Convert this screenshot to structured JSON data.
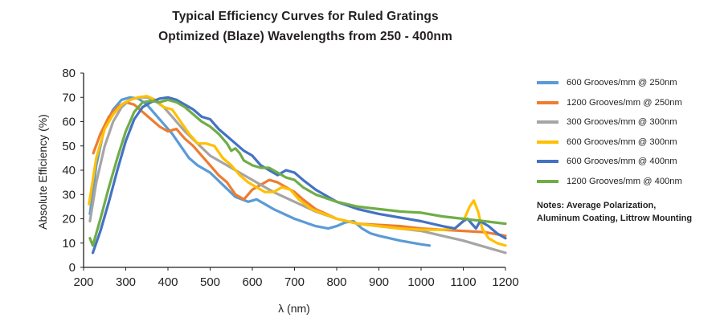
{
  "chart_data": {
    "type": "line",
    "title": "Typical Efficiency Curves for Ruled Gratings",
    "subtitle": "Optimized (Blaze) Wavelengths from 250 - 400nm",
    "xlabel": "λ (nm)",
    "ylabel": "Absolute Efficiency (%)",
    "xlim": [
      200,
      1200
    ],
    "ylim": [
      0,
      80
    ],
    "xticks": [
      "200",
      "300",
      "400",
      "500",
      "600",
      "700",
      "800",
      "900",
      "1000",
      "1100",
      "1200"
    ],
    "yticks": [
      "0",
      "10",
      "20",
      "30",
      "40",
      "50",
      "60",
      "70",
      "80"
    ],
    "grid": false,
    "legend_position": "right",
    "series": [
      {
        "name": "600 Grooves/mm @ 250nm",
        "color": "#5b9bd5",
        "x": [
          215,
          230,
          250,
          270,
          290,
          310,
          330,
          350,
          370,
          390,
          410,
          430,
          450,
          470,
          500,
          530,
          560,
          590,
          610,
          630,
          650,
          700,
          750,
          780,
          800,
          820,
          840,
          860,
          880,
          900,
          950,
          1000,
          1020
        ],
        "y": [
          22,
          42,
          58,
          65,
          69,
          70,
          69.5,
          67,
          63,
          59,
          55,
          50,
          45,
          42,
          39,
          34,
          29,
          27,
          28,
          26,
          24,
          20,
          17,
          16,
          17,
          18.5,
          19,
          16,
          14,
          13,
          11,
          9.5,
          9
        ]
      },
      {
        "name": "1200 Grooves/mm @ 250nm",
        "color": "#ed7d31",
        "x": [
          223,
          240,
          260,
          280,
          300,
          320,
          340,
          360,
          380,
          400,
          420,
          440,
          460,
          480,
          500,
          520,
          540,
          560,
          580,
          600,
          620,
          640,
          660,
          680,
          700,
          720,
          750,
          800,
          850,
          900,
          950,
          1000,
          1050,
          1100,
          1150,
          1200
        ],
        "y": [
          47,
          55,
          62,
          66,
          68,
          67,
          64,
          61,
          58,
          56,
          57,
          53,
          50,
          46,
          42,
          38,
          35,
          30,
          28,
          32,
          34,
          36,
          35,
          33,
          31,
          28,
          24,
          20,
          18,
          17.5,
          17,
          16,
          15.5,
          15,
          14.5,
          13
        ]
      },
      {
        "name": "300 Grooves/mm @ 300nm",
        "color": "#a5a5a5",
        "x": [
          215,
          230,
          250,
          270,
          290,
          310,
          330,
          350,
          370,
          390,
          410,
          440,
          470,
          500,
          550,
          600,
          650,
          700,
          750,
          800,
          850,
          900,
          950,
          1000,
          1050,
          1100,
          1150,
          1200
        ],
        "y": [
          19,
          35,
          50,
          60,
          66,
          69,
          70,
          70,
          68.5,
          66,
          62,
          56,
          51,
          46,
          41,
          36,
          31,
          27,
          23,
          20,
          18,
          17,
          16,
          15,
          13,
          11,
          8.5,
          6
        ]
      },
      {
        "name": "600 Grooves/mm @ 300nm",
        "color": "#ffc000",
        "x": [
          213,
          230,
          250,
          270,
          290,
          310,
          330,
          350,
          370,
          390,
          410,
          430,
          450,
          470,
          490,
          510,
          530,
          550,
          570,
          590,
          610,
          630,
          650,
          670,
          690,
          710,
          740,
          800,
          850,
          900,
          950,
          1000,
          1050,
          1080,
          1100,
          1115,
          1125,
          1135,
          1145,
          1160,
          1180,
          1200
        ],
        "y": [
          26,
          45,
          57,
          63,
          67,
          69,
          70,
          70.5,
          69,
          66,
          65,
          60,
          55,
          51,
          51,
          50,
          45,
          42,
          38,
          35,
          33,
          31,
          31,
          33,
          32,
          28,
          24,
          20,
          18,
          17,
          16,
          15.5,
          15.5,
          16,
          19,
          25,
          27.5,
          23,
          16,
          12,
          10,
          9
        ]
      },
      {
        "name": "600 Grooves/mm @ 400nm",
        "color": "#4472c4",
        "x": [
          222,
          240,
          260,
          280,
          300,
          320,
          340,
          360,
          380,
          400,
          420,
          440,
          460,
          480,
          500,
          520,
          540,
          560,
          580,
          600,
          620,
          640,
          660,
          680,
          700,
          720,
          750,
          800,
          850,
          900,
          950,
          1000,
          1050,
          1080,
          1100,
          1110,
          1120,
          1130,
          1140,
          1160,
          1180,
          1200
        ],
        "y": [
          6,
          15,
          27,
          40,
          52,
          61,
          66,
          68,
          69.5,
          70,
          69,
          67,
          65,
          62,
          61,
          57,
          54,
          51,
          48,
          46,
          42,
          40,
          38,
          40,
          39,
          36,
          32,
          27,
          24,
          22,
          20.5,
          19,
          17,
          16,
          19,
          20,
          18,
          16,
          19,
          17,
          14,
          12
        ]
      },
      {
        "name": "1200 Grooves/mm @ 400nm",
        "color": "#70ad47",
        "x": [
          215,
          222,
          240,
          260,
          280,
          300,
          320,
          340,
          360,
          380,
          400,
          420,
          440,
          460,
          480,
          500,
          520,
          540,
          550,
          560,
          570,
          580,
          600,
          620,
          640,
          660,
          680,
          700,
          720,
          750,
          800,
          850,
          900,
          950,
          1000,
          1050,
          1100,
          1150,
          1200
        ],
        "y": [
          12,
          9,
          20,
          33,
          45,
          56,
          64,
          68,
          68.5,
          68,
          69,
          68,
          66,
          63,
          60,
          58,
          55,
          51,
          48,
          49,
          47,
          44,
          42,
          41,
          41,
          39,
          37,
          36,
          33,
          30,
          27,
          25,
          24,
          23,
          22.5,
          21,
          20,
          19,
          18
        ]
      }
    ]
  },
  "notes": {
    "line1": "Notes: Average Polarization,",
    "line2": "Aluminum Coating, Littrow Mounting"
  }
}
